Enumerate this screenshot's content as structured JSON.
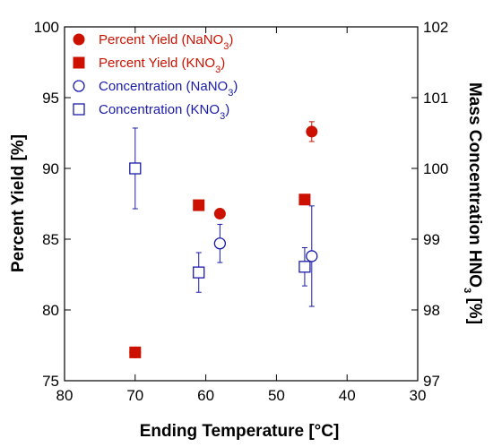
{
  "chart_data": {
    "type": "scatter",
    "title": "",
    "xlabel": "Ending Temperature [°C]",
    "ylabel_left": "Percent Yield [%]",
    "ylabel_right_main": "Mass Concentration HNO",
    "ylabel_right_sub": "3",
    "ylabel_right_tail": " [%]",
    "xlim": [
      80,
      30
    ],
    "x_reversed": true,
    "ylim_left": [
      75,
      100
    ],
    "ylim_right": [
      97,
      102
    ],
    "x_ticks": [
      80,
      70,
      60,
      50,
      40,
      30
    ],
    "x_tick_labels": [
      "80",
      "70",
      "60",
      "50",
      "40",
      "30"
    ],
    "y_left_ticks": [
      75,
      80,
      85,
      90,
      95,
      100
    ],
    "y_left_tick_labels": [
      "75",
      "80",
      "85",
      "90",
      "95",
      "100"
    ],
    "y_right_ticks": [
      97,
      98,
      99,
      100,
      101,
      102
    ],
    "y_right_tick_labels": [
      "97",
      "98",
      "99",
      "100",
      "101",
      "102"
    ],
    "grid": false,
    "legend_placement": "top-left",
    "series": [
      {
        "name": "Percent Yield (NaNO",
        "name_sub": "3",
        "name_tail": ")",
        "axis": "left",
        "marker": "filled-circle",
        "color": "#cc1100",
        "points": [
          {
            "x": 70,
            "y": 77.0,
            "err": 0.3
          },
          {
            "x": 58,
            "y": 86.8,
            "err": 0.3
          },
          {
            "x": 45,
            "y": 92.6,
            "err": 0.7
          }
        ]
      },
      {
        "name": "Percent Yield (KNO",
        "name_sub": "3",
        "name_tail": ")",
        "axis": "left",
        "marker": "filled-square",
        "color": "#cc1100",
        "points": [
          {
            "x": 70,
            "y": 77.0,
            "err": 0.3
          },
          {
            "x": 61,
            "y": 87.4,
            "err": 0.3
          },
          {
            "x": 46,
            "y": 87.8,
            "err": 0.3
          }
        ]
      },
      {
        "name": "Concentration (NaNO",
        "name_sub": "3",
        "name_tail": ")",
        "axis": "right",
        "marker": "open-circle",
        "color": "#1a1aaa",
        "points": [
          {
            "x": 58,
            "y": 98.94,
            "err": 0.27
          },
          {
            "x": 45,
            "y": 98.76,
            "err": 0.71
          }
        ]
      },
      {
        "name": "Concentration (KNO",
        "name_sub": "3",
        "name_tail": ")",
        "axis": "right",
        "marker": "open-square",
        "color": "#1a1aaa",
        "points": [
          {
            "x": 70,
            "y": 100.0,
            "err": 0.57
          },
          {
            "x": 61,
            "y": 98.53,
            "err": 0.28
          },
          {
            "x": 46,
            "y": 98.61,
            "err": 0.27
          }
        ]
      }
    ]
  }
}
